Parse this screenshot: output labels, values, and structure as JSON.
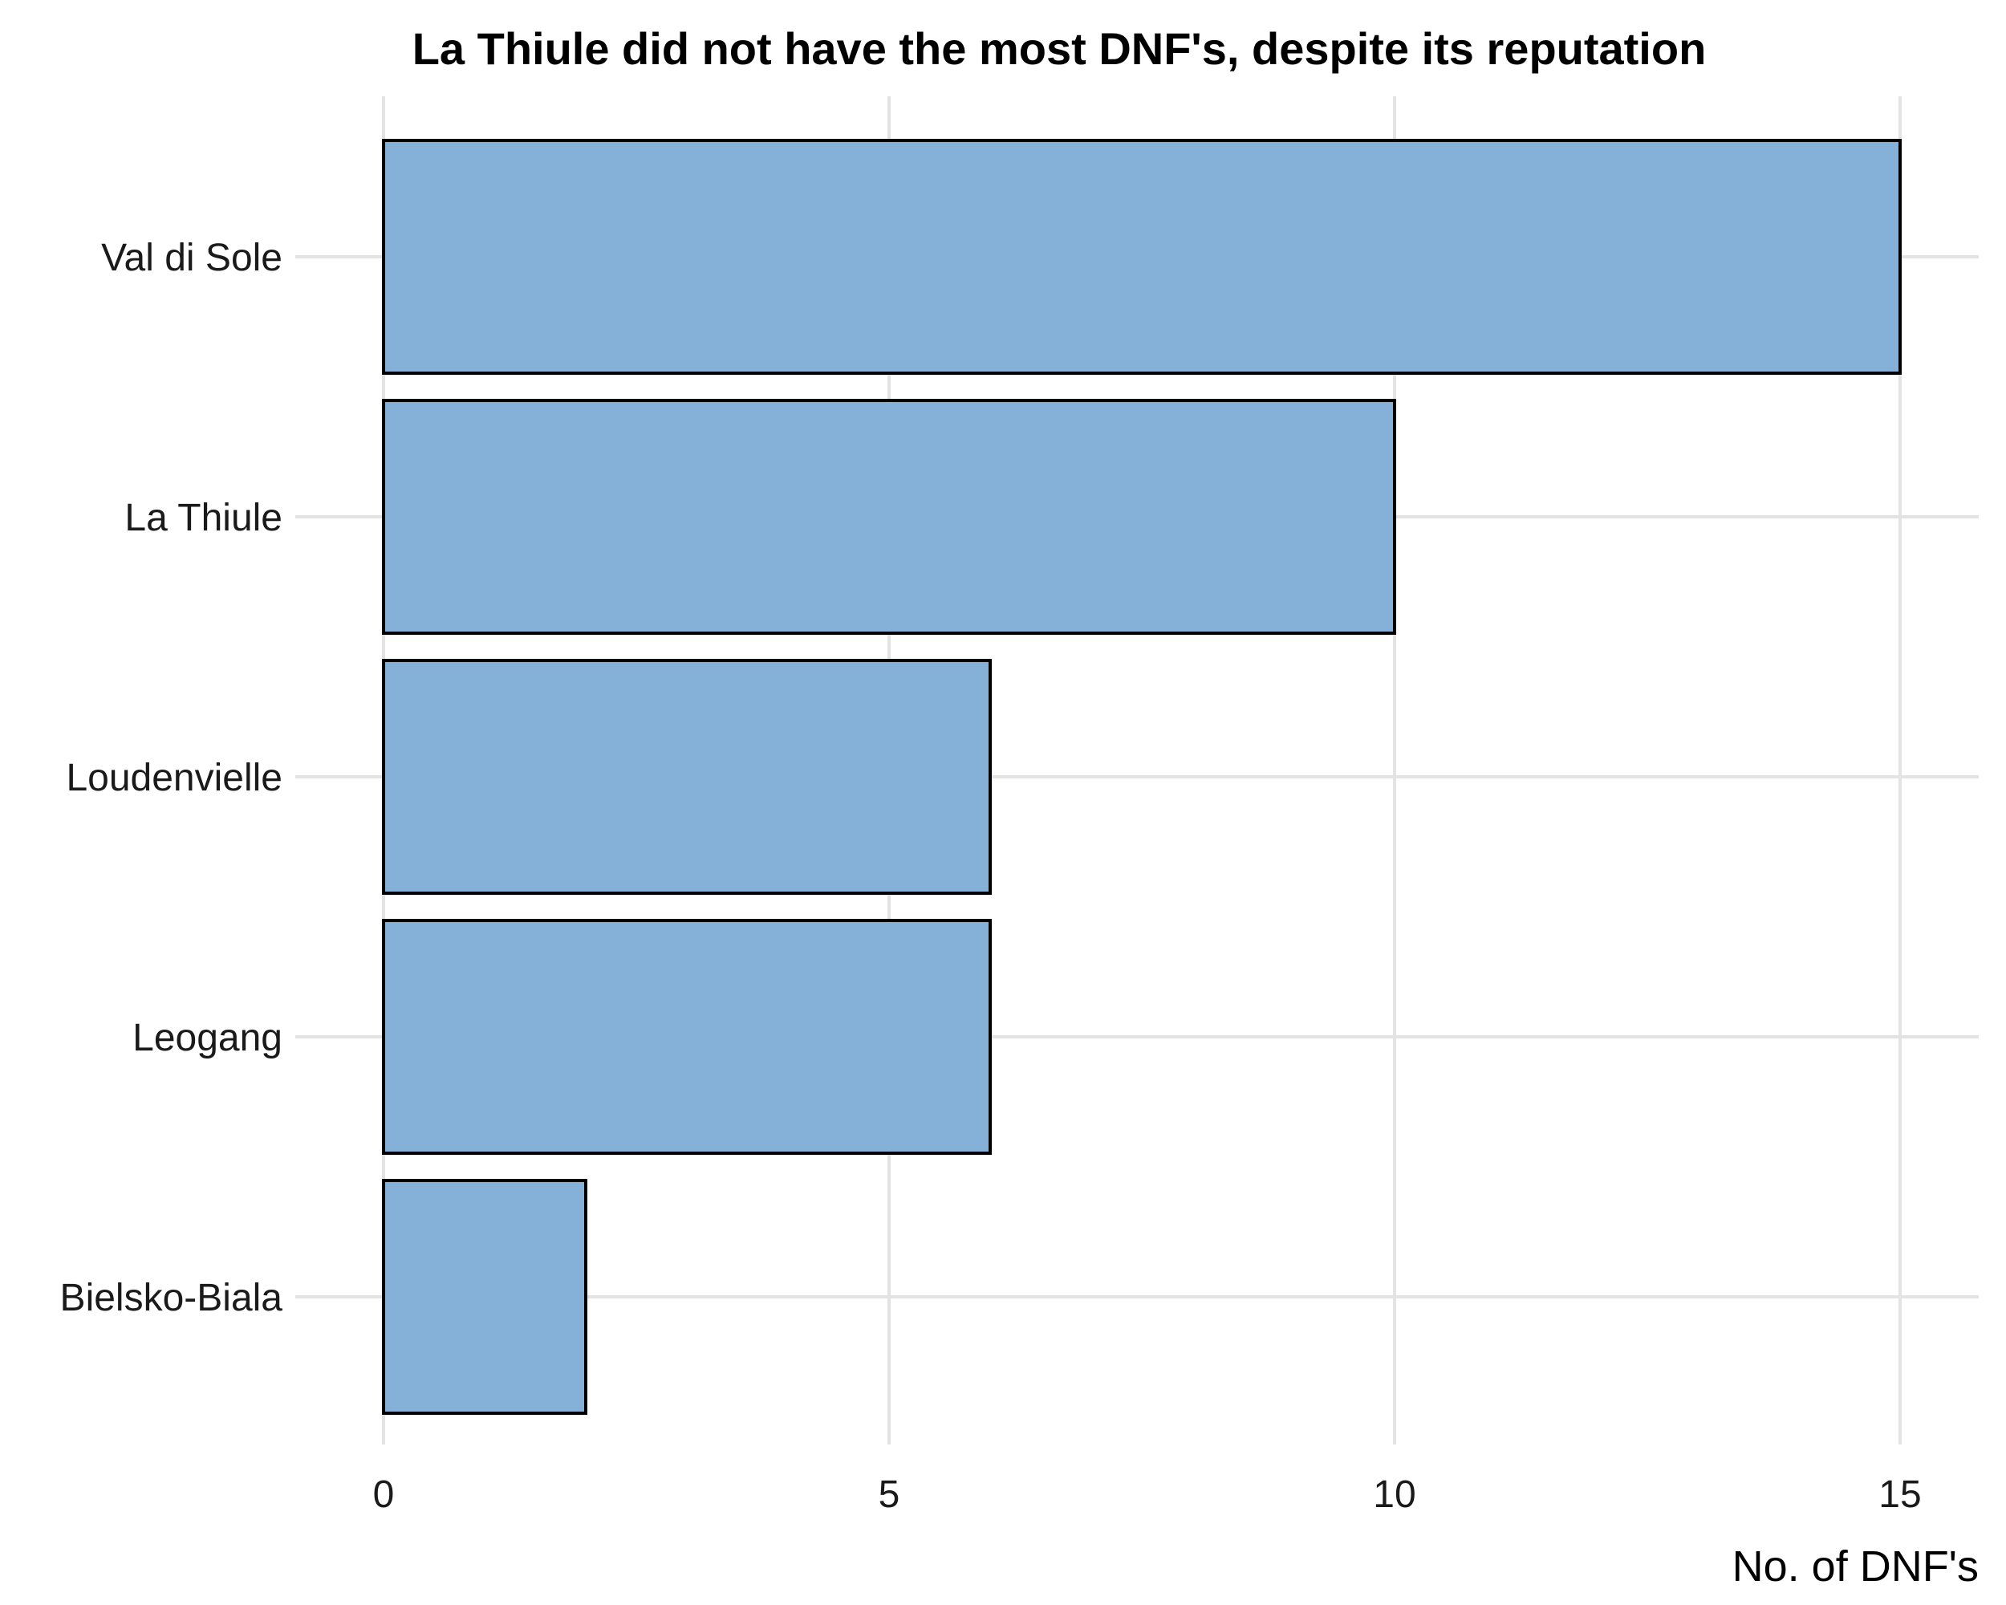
{
  "chart_data": {
    "type": "bar",
    "orientation": "horizontal",
    "title": "La Thiule did not have the most DNF's, despite its reputation",
    "xlabel": "No. of DNF's",
    "ylabel": "",
    "categories": [
      "Val di Sole",
      "La Thiule",
      "Loudenvielle",
      "Leogang",
      "Bielsko-Biala"
    ],
    "values": [
      15,
      10,
      6,
      6,
      2
    ],
    "xlim": [
      0,
      15
    ],
    "xticks": [
      0,
      5,
      10,
      15
    ],
    "xtick_labels": [
      "0",
      "5",
      "10",
      "15"
    ],
    "grid": true,
    "bar_color": "#85b1d9",
    "bar_edge_color": "#000000",
    "legend": "none"
  }
}
